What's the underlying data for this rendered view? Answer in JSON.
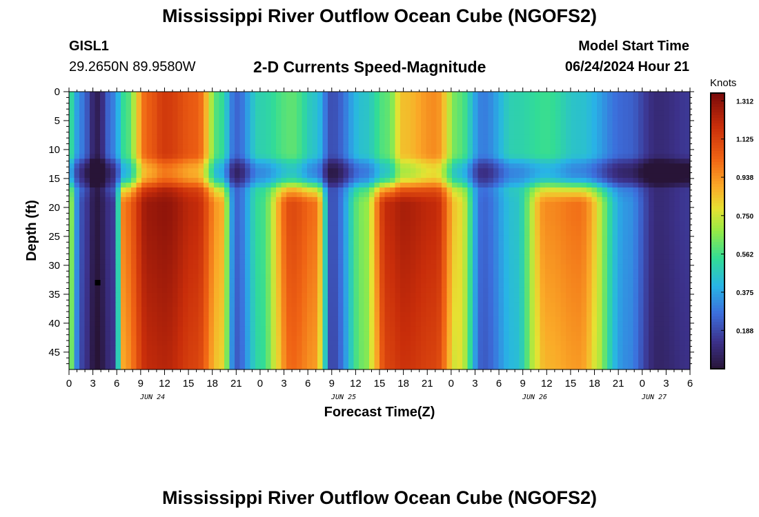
{
  "page": {
    "title_top": "Mississippi River Outflow Ocean Cube (NGOFS2)",
    "title_bottom": "Mississippi River Outflow Ocean Cube (NGOFS2)",
    "station_id": "GISL1",
    "station_coords": "29.2650N  89.9580W",
    "plot_subtitle": "2-D Currents Speed-Magnitude",
    "model_start_label": "Model Start Time",
    "model_start_value": "06/24/2024 Hour 21"
  },
  "chart_data": {
    "type": "heatmap",
    "title": "2-D Currents Speed-Magnitude",
    "xlabel": "Forecast Time(Z)",
    "ylabel": "Depth (ft)",
    "x_hours_range": [
      0,
      78
    ],
    "y_range": [
      0,
      48
    ],
    "y_ticks": [
      "0",
      "5",
      "10",
      "15",
      "20",
      "25",
      "30",
      "35",
      "40",
      "45"
    ],
    "x_ticks": [
      "0",
      "3",
      "6",
      "9",
      "12",
      "15",
      "18",
      "21",
      "0",
      "3",
      "6",
      "9",
      "12",
      "15",
      "18",
      "21",
      "0",
      "3",
      "6",
      "9",
      "12",
      "15",
      "18",
      "21",
      "0",
      "3",
      "6"
    ],
    "dates": [
      {
        "label": "JUN 24",
        "hour": 10.5
      },
      {
        "label": "JUN 25",
        "hour": 34.5
      },
      {
        "label": "JUN 26",
        "hour": 58.5
      },
      {
        "label": "JUN 27",
        "hour": 73.5
      }
    ],
    "colorbar": {
      "unit": "Knots",
      "min": 0,
      "max": 1.35,
      "ticks": [
        "1.312",
        "1.125",
        "0.938",
        "0.750",
        "0.562",
        "0.375",
        "0.188"
      ]
    },
    "surface_speed_profile": {
      "hours": [
        0,
        1.5,
        3.5,
        5.5,
        7,
        10,
        12,
        16,
        19,
        21,
        24,
        28,
        31,
        33,
        37,
        40,
        42,
        46,
        49,
        52,
        56,
        60,
        64,
        70,
        74,
        78
      ],
      "speed": [
        0.55,
        0.3,
        0.05,
        0.3,
        0.55,
        1.05,
        1.15,
        1.05,
        0.55,
        0.25,
        0.5,
        0.6,
        0.45,
        0.2,
        0.45,
        0.6,
        0.85,
        0.95,
        0.6,
        0.3,
        0.5,
        0.55,
        0.45,
        0.25,
        0.1,
        0.15
      ]
    },
    "deep_speed_profile": {
      "hours": [
        0,
        1.5,
        3.5,
        5.5,
        7,
        10,
        12,
        16,
        19,
        21,
        24,
        28,
        31,
        33,
        37,
        40,
        42,
        46,
        49,
        52,
        56,
        60,
        64,
        70,
        74,
        78
      ],
      "speed": [
        0.7,
        0.2,
        0.02,
        0.15,
        1.0,
        1.28,
        1.3,
        1.2,
        0.9,
        0.25,
        0.55,
        1.1,
        1.0,
        0.2,
        0.65,
        1.2,
        1.25,
        1.2,
        0.8,
        0.25,
        0.45,
        0.95,
        1.0,
        0.35,
        0.1,
        0.15
      ]
    },
    "marker": {
      "hour": 3.6,
      "depth": 33
    }
  }
}
